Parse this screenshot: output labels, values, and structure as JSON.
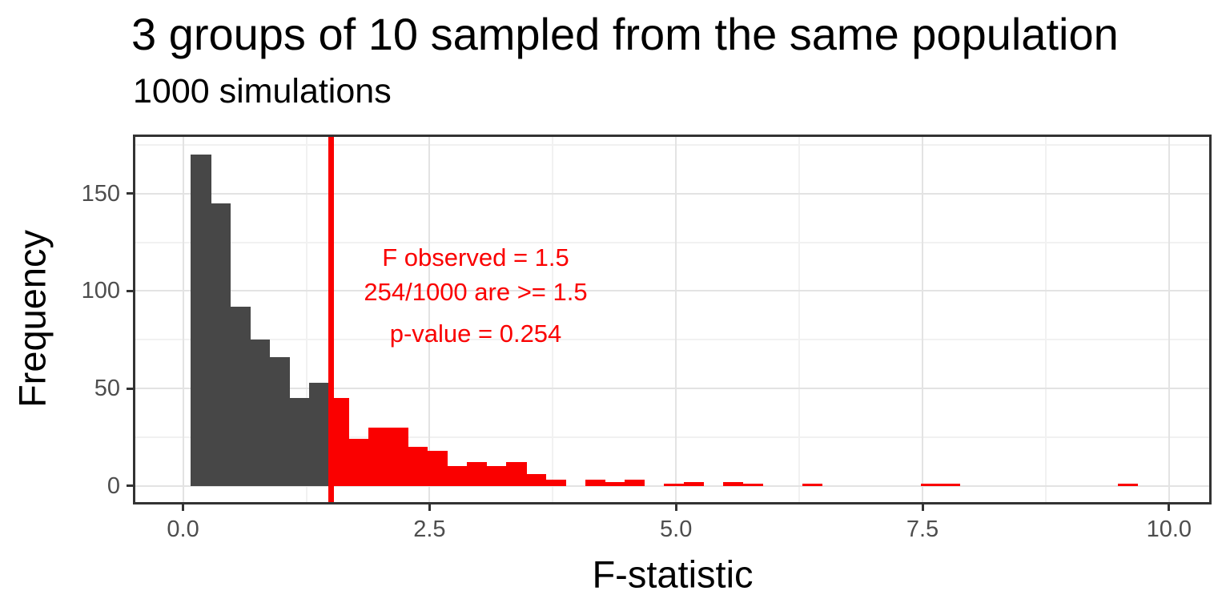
{
  "chart_data": {
    "type": "bar",
    "subtype": "histogram",
    "title": "3 groups of 10 sampled from the same population",
    "subtitle": "1000 simulations",
    "xlabel": "F-statistic",
    "ylabel": "Frequency",
    "x_ticks": [
      0,
      2.5,
      5,
      7.5,
      10
    ],
    "x_tick_labels": [
      "0.0",
      "2.5",
      "5.0",
      "7.5",
      "10.0"
    ],
    "y_ticks": [
      0,
      50,
      100,
      150
    ],
    "y_tick_labels": [
      "0",
      "50",
      "100",
      "150"
    ],
    "xlim": [
      -0.51,
      10.43
    ],
    "ylim": [
      0,
      180
    ],
    "grid": "major+minor",
    "legend": false,
    "histogram": {
      "bin_start": 0.08,
      "bin_width": 0.2,
      "counts": [
        170,
        145,
        92,
        75,
        66,
        45,
        53,
        45,
        24,
        30,
        30,
        20,
        18,
        10,
        12,
        10,
        12,
        6,
        3,
        0,
        3,
        2,
        3,
        0,
        1,
        2,
        0,
        2,
        1,
        0,
        0,
        1,
        0,
        0,
        0,
        0,
        0,
        1,
        1,
        0,
        0,
        0,
        0,
        0,
        0,
        0,
        0,
        1
      ]
    },
    "threshold_line": {
      "x": 1.5
    },
    "annotation_text": [
      "F observed = 1.5",
      "254/1000 are >= 1.5",
      "p-value = 0.254"
    ],
    "colors": {
      "bars_below": "#474747",
      "bars_above": "#fa0000",
      "threshold_line": "#fa0000",
      "annotation_text": "#fa0000",
      "grid_major": "#e3e3e3",
      "grid_minor": "#f1f1f1",
      "panel_border": "#333333",
      "tick_mark": "#333333",
      "tick_label": "#4d4d4d",
      "title_text": "#000000"
    }
  }
}
